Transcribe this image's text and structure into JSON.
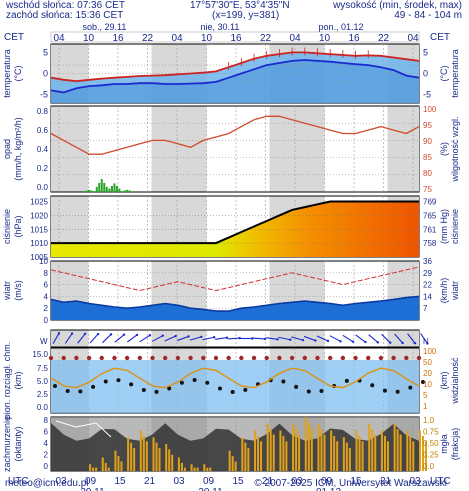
{
  "header": {
    "sunrise": "wschód słońca: 07:36 CET",
    "sunset": "zachód słońca: 15:36 CET",
    "coords": "17°57'30\"E, 53°4'35\"N",
    "grid": "(x=199, y=381)",
    "elevation_label": "wysokość (min, środek, max)",
    "elevation_values": "49 - 84 - 104 m"
  },
  "footer": {
    "email": "meteo@icm.edu.pl",
    "copyright": "© 2007-2025 ICM, Uniwersytet Warszawski"
  },
  "time_axis": {
    "top_tz": "CET",
    "bottom_tz": "UTC",
    "top_hours": [
      "04",
      "10",
      "16",
      "22",
      "04",
      "10",
      "16",
      "22",
      "04",
      "10",
      "16",
      "22",
      "04"
    ],
    "bottom_hours": [
      "03",
      "09",
      "15",
      "21",
      "03",
      "09",
      "15",
      "21",
      "03",
      "09",
      "15",
      "21",
      "03"
    ],
    "top_days": [
      "sob., 29.11",
      "nie, 30.11",
      "pon., 01.12"
    ],
    "bottom_days": [
      "29.11",
      "30.11",
      "01.12"
    ]
  },
  "panels": {
    "temperature": {
      "left_label": "temperatura",
      "left_unit": "(°C)",
      "right_label": "temperatura",
      "right_unit": "(°C)",
      "ticks": [
        "5",
        "0",
        "-5"
      ]
    },
    "precip": {
      "left_label": "opad",
      "left_unit": "(mm/h, kg/m²/h)",
      "right_label": "wilgotność wzgl.",
      "right_unit": "(%)",
      "left_ticks": [
        "0.8",
        "0.6",
        "0.4",
        "0.2",
        "0.0"
      ],
      "right_ticks": [
        "100",
        "95",
        "90",
        "85",
        "80",
        "75"
      ]
    },
    "pressure": {
      "left_label": "ciśnienie",
      "left_unit": "(hPa)",
      "right_label": "ciśnienie",
      "right_unit": "(mm Hg)",
      "left_ticks": [
        "1025",
        "1020",
        "1015",
        "1010",
        "1005"
      ],
      "right_ticks": [
        "769",
        "765",
        "761",
        "758"
      ]
    },
    "wind": {
      "left_label": "wiatr",
      "left_unit": "(m/s)",
      "right_label": "wiatr",
      "right_unit": "(km/h)",
      "left_ticks": [
        "10",
        "8",
        "6",
        "4",
        "2",
        "0"
      ],
      "right_ticks": [
        "36",
        "29",
        "22",
        "14",
        "7"
      ]
    },
    "direction": {
      "left_label": "W",
      "right_label": "N"
    },
    "cloud_vis": {
      "left_label": "pion. rozciągł. chm.",
      "left_unit": "(km)",
      "right_label": "widzialność",
      "right_unit": "(km)",
      "left_ticks": [
        "15.0",
        "7.5",
        "5.0",
        "2.5",
        "0.0"
      ],
      "right_ticks": [
        "100",
        "50",
        "20",
        "10",
        "5",
        "1"
      ]
    },
    "cover": {
      "left_label": "zachmurzenie",
      "left_unit": "(oktanty)",
      "right_label": "(frakcja)",
      "right_unit": "mgła",
      "left_ticks": [
        "8",
        "6",
        "4",
        "2",
        "0"
      ],
      "right_ticks": [
        "1.0",
        "0.75",
        "0.50",
        "0.25",
        "0.0"
      ]
    }
  },
  "colors": {
    "temp_line": "#cc2222",
    "dew_line": "#1a2ad0",
    "temp_fill": "#6fb5ec",
    "shade": "#d8d8d8",
    "pressure_line": "#000000",
    "wind_fill": "#1d6fd6",
    "cloud_bar": "#e0a21b",
    "dark_cover": "#333333"
  },
  "chart_data": [
    {
      "type": "line",
      "name_pl": "temperatura",
      "ylim": [
        -7,
        7
      ],
      "series": [
        {
          "values": [
            -1.0,
            -1.5,
            -1.8,
            -1.5,
            -1.2,
            -1.0,
            -0.8,
            -0.6,
            -0.5,
            -0.4,
            -0.2,
            0.0,
            0.2,
            0.5,
            1.5,
            2.5,
            3.5,
            4.2,
            4.6,
            5.0,
            5.0,
            4.8,
            4.6,
            4.4,
            4.2,
            4.3,
            4.2,
            3.8,
            3.4,
            3.0
          ]
        },
        {
          "values": [
            -4.0,
            -4.5,
            -3.5,
            -3.0,
            -2.8,
            -2.5,
            -2.5,
            -2.3,
            -2.3,
            -2.5,
            -2.5,
            -2.4,
            -2.3,
            -2.0,
            -1.0,
            0.0,
            1.0,
            2.0,
            2.5,
            3.0,
            3.2,
            3.0,
            2.8,
            2.5,
            2.2,
            2.0,
            1.5,
            0.8,
            -0.5,
            -1.0
          ]
        }
      ]
    },
    {
      "type": "line",
      "name_pl": "wilgotność wzgl.",
      "ylim": [
        75,
        100
      ],
      "values": [
        92,
        90,
        88,
        86,
        86,
        87,
        88,
        89,
        90,
        90,
        89,
        88,
        90,
        91,
        92,
        94,
        96,
        97,
        97,
        96,
        95,
        94,
        93,
        92,
        92,
        93,
        94,
        93,
        92,
        94
      ]
    },
    {
      "type": "line",
      "name_pl": "ciśnienie",
      "ylim": [
        1005,
        1027
      ],
      "values": [
        1010,
        1010,
        1010,
        1010,
        1010,
        1010,
        1010,
        1010,
        1010,
        1010,
        1010,
        1010,
        1010,
        1010,
        1012,
        1014,
        1016,
        1018,
        1020,
        1022,
        1023,
        1024,
        1025,
        1025,
        1025,
        1025,
        1025,
        1025,
        1025,
        1025
      ]
    },
    {
      "type": "area",
      "name_pl": "wiatr",
      "ylim": [
        0,
        10
      ],
      "values": [
        3.5,
        3.0,
        3.2,
        2.8,
        2.5,
        2.2,
        2.0,
        2.2,
        2.5,
        2.8,
        2.5,
        2.0,
        1.8,
        1.5,
        1.5,
        2.0,
        2.2,
        2.5,
        2.8,
        3.0,
        3.2,
        3.0,
        2.8,
        2.5,
        2.8,
        3.0,
        3.2,
        3.5,
        3.8,
        4.0
      ]
    },
    {
      "type": "line",
      "name_pl": "porywy",
      "ylim": [
        0,
        10
      ],
      "values": [
        8.5,
        8.0,
        7.5,
        7.0,
        6.5,
        6.0,
        5.5,
        5.0,
        5.5,
        6.0,
        6.5,
        6.0,
        5.5,
        5.0,
        5.5,
        6.0,
        6.5,
        7.0,
        7.5,
        8.0,
        7.5,
        7.0,
        6.5,
        6.0,
        6.5,
        7.0,
        7.5,
        8.0,
        8.5,
        9.0
      ]
    },
    {
      "type": "bar",
      "name_pl": "opad",
      "ylim": [
        0,
        0.8
      ],
      "values": [
        0,
        0,
        0,
        0.02,
        0.12,
        0.08,
        0.02,
        0,
        0,
        0,
        0,
        0,
        0,
        0,
        0,
        0,
        0,
        0,
        0,
        0,
        0,
        0,
        0,
        0,
        0,
        0,
        0,
        0,
        0,
        0
      ]
    },
    {
      "type": "bar",
      "name_pl": "zachmurzenie",
      "ylim": [
        0,
        8
      ],
      "values": [
        0,
        0,
        0,
        1,
        2,
        3,
        5,
        6,
        5,
        4,
        2,
        1,
        1,
        0,
        3,
        5,
        6,
        7,
        6,
        7,
        8,
        7,
        6,
        5,
        6,
        7,
        6,
        7,
        6,
        6
      ]
    }
  ]
}
